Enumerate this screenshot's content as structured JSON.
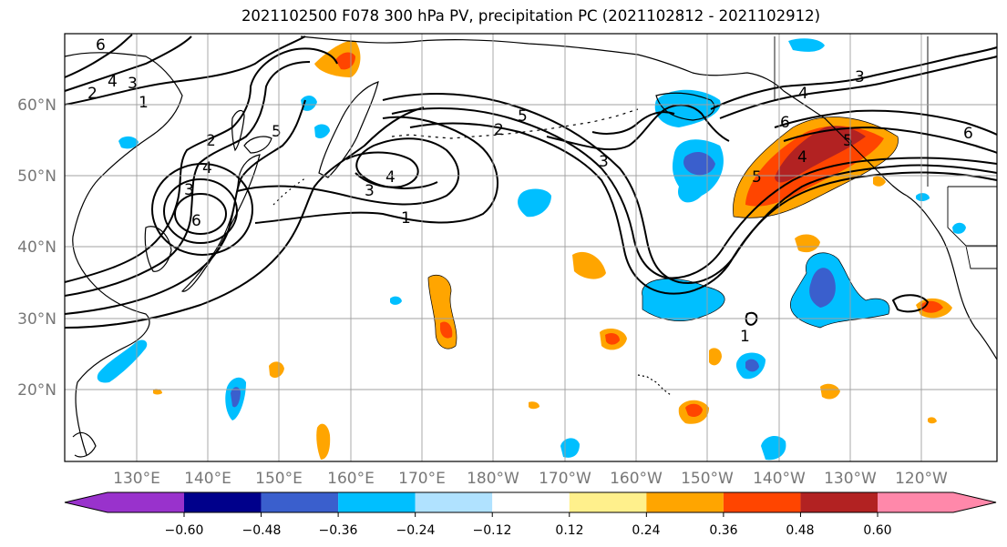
{
  "title": "2021102500 F078 300 hPa PV, precipitation PC (2021102812 - 2021102912)",
  "lat_labels": [
    "60°N",
    "50°N",
    "40°N",
    "30°N",
    "20°N"
  ],
  "lon_labels": [
    "130°E",
    "140°E",
    "150°E",
    "160°E",
    "170°E",
    "180°W",
    "170°W",
    "160°W",
    "150°W",
    "140°W",
    "130°W",
    "120°W"
  ],
  "colorbar": {
    "ticks": [
      "−0.60",
      "−0.48",
      "−0.36",
      "−0.24",
      "−0.12",
      "0.12",
      "0.24",
      "0.36",
      "0.48",
      "0.60"
    ],
    "colors": [
      "#9932cc",
      "#00008b",
      "#3a5fcd",
      "#00bfff",
      "#b0e2ff",
      "#ffffff",
      "#fff08c",
      "#ffa500",
      "#ff4500",
      "#b22222",
      "#ff88aa"
    ]
  },
  "pv_contour_labels": [
    "6",
    "4",
    "2",
    "1",
    "3",
    "2",
    "3",
    "4",
    "6",
    "5",
    "1",
    "5",
    "2",
    "3",
    "4",
    "3",
    "6",
    "5",
    "4",
    "5",
    "6",
    "3",
    "4",
    "1"
  ],
  "colors": {
    "coast": "#000000",
    "grid": "#a0a0a0",
    "axis_label": "#777777"
  }
}
